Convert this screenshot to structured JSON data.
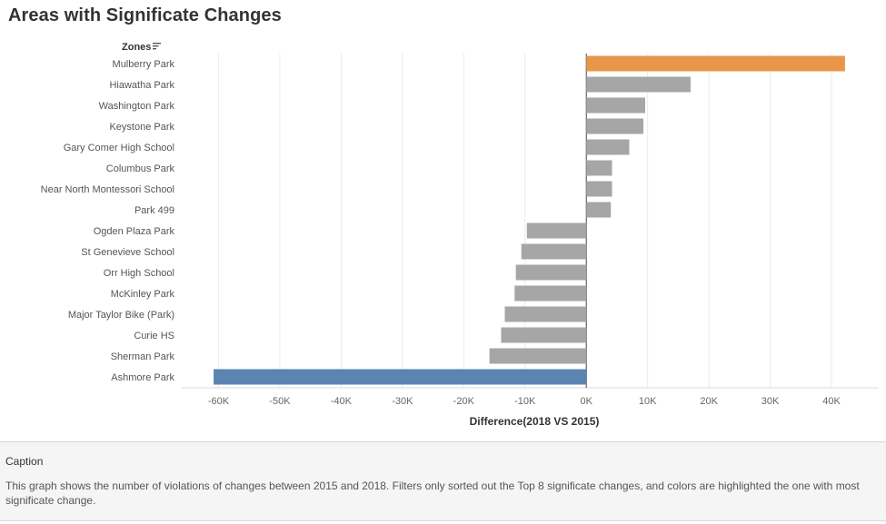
{
  "title": "Areas with Significate Changes",
  "chart_data": {
    "type": "bar",
    "orientation": "horizontal",
    "row_header": "Zones",
    "sort_icon": "sort-descending-icon",
    "categories": [
      "Mulberry Park",
      "Hiawatha Park",
      "Washington Park",
      "Keystone Park",
      "Gary Comer High School",
      "Columbus Park",
      "Near North Montessori School",
      "Park 499",
      "Ogden Plaza Park",
      "St Genevieve School",
      "Orr High School",
      "McKinley Park",
      "Major Taylor Bike (Park)",
      "Curie HS",
      "Sherman Park",
      "Ashmore Park"
    ],
    "values": [
      42200,
      17000,
      9600,
      9300,
      7000,
      4200,
      4200,
      4000,
      -9700,
      -10600,
      -11500,
      -11700,
      -13300,
      -13900,
      -15800,
      -60800
    ],
    "colors": [
      "#e8964a",
      "#a6a6a6",
      "#a6a6a6",
      "#a6a6a6",
      "#a6a6a6",
      "#a6a6a6",
      "#a6a6a6",
      "#a6a6a6",
      "#a6a6a6",
      "#a6a6a6",
      "#a6a6a6",
      "#a6a6a6",
      "#a6a6a6",
      "#a6a6a6",
      "#a6a6a6",
      "#5b84b1"
    ],
    "x_ticks": [
      -60000,
      -50000,
      -40000,
      -30000,
      -20000,
      -10000,
      0,
      10000,
      20000,
      30000,
      40000
    ],
    "x_tick_labels": [
      "-60K",
      "-50K",
      "-40K",
      "-30K",
      "-20K",
      "-10K",
      "0K",
      "10K",
      "20K",
      "30K",
      "40K"
    ],
    "xlim": [
      -66000,
      47700
    ],
    "xlabel": "Difference(2018 VS 2015)",
    "ylabel": "",
    "grid": true,
    "legend": "none"
  },
  "caption": {
    "title": "Caption",
    "text": "This graph shows the number of violations of changes between 2015 and 2018. Filters only sorted out the Top 8 significate changes, and colors are highlighted the one with most significate change."
  }
}
